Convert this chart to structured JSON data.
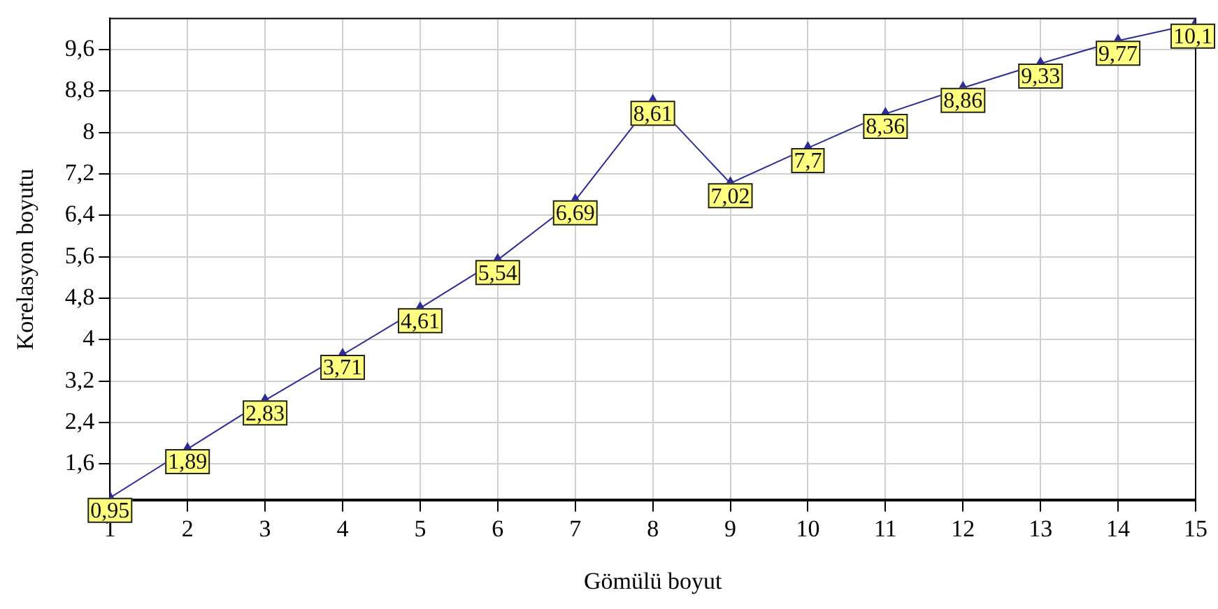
{
  "chart_data": {
    "type": "line",
    "xlabel": "Gömülü boyut",
    "ylabel": "Korelasyon boyutu",
    "x": [
      1,
      2,
      3,
      4,
      5,
      6,
      7,
      8,
      9,
      10,
      11,
      12,
      13,
      14,
      15
    ],
    "series": [
      {
        "color": "#2b2b99",
        "values": [
          0.95,
          1.89,
          2.83,
          3.71,
          4.61,
          5.54,
          6.69,
          8.61,
          7.02,
          7.7,
          8.36,
          8.86,
          9.33,
          9.77,
          10.1
        ],
        "value_labels": [
          "0,95",
          "1,89",
          "2,83",
          "3,71",
          "4,61",
          "5,54",
          "6,69",
          "8,61",
          "7,02",
          "7,7",
          "8,36",
          "8,86",
          "9,33",
          "9,77",
          "10,1"
        ]
      }
    ],
    "xlim": [
      1,
      15
    ],
    "xticks": [
      1,
      2,
      3,
      4,
      5,
      6,
      7,
      8,
      9,
      10,
      11,
      12,
      13,
      14,
      15
    ],
    "ylim": [
      0.9,
      10.2
    ],
    "yticks": [
      {
        "value": 1.6,
        "label": "1,6"
      },
      {
        "value": 2.4,
        "label": "2,4"
      },
      {
        "value": 3.2,
        "label": "3,2"
      },
      4,
      {
        "value": 4.8,
        "label": "4,8"
      },
      {
        "value": 5.6,
        "label": "5,6"
      },
      {
        "value": 6.4,
        "label": "6,4"
      },
      {
        "value": 7.2,
        "label": "7,2"
      },
      8,
      {
        "value": 8.8,
        "label": "8,8"
      },
      {
        "value": 9.6,
        "label": "9,6"
      }
    ],
    "grid": true,
    "legend": false,
    "marker": "triangle",
    "line_style": "solid"
  }
}
